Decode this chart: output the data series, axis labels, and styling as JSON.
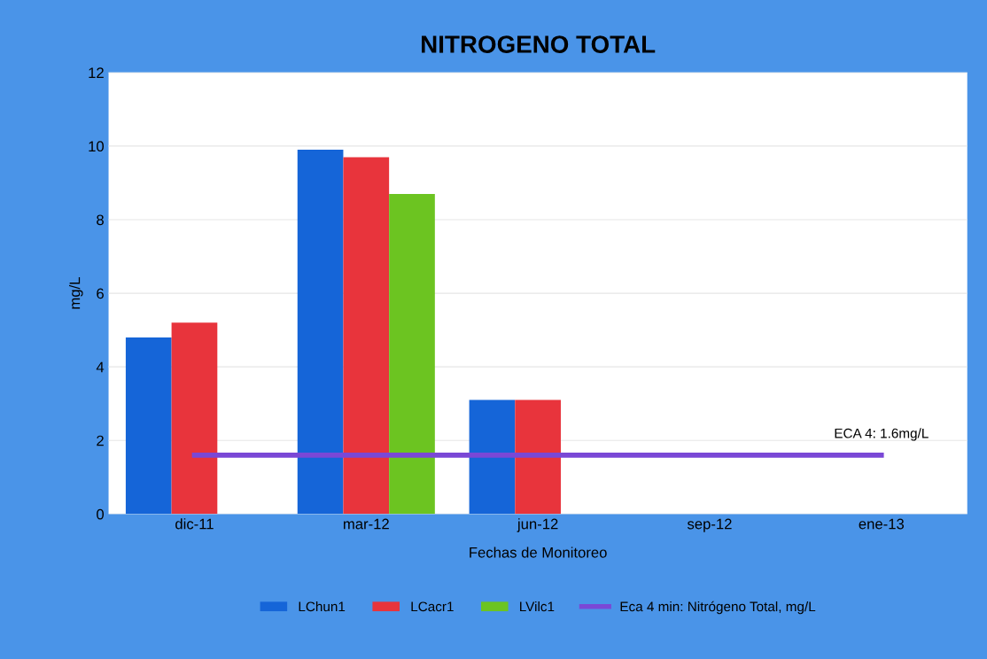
{
  "chart_data": {
    "type": "bar",
    "title": "NITROGENO TOTAL",
    "xlabel": "Fechas de Monitoreo",
    "ylabel": "mg/L",
    "categories": [
      "dic-11",
      "mar-12",
      "jun-12",
      "sep-12",
      "ene-13"
    ],
    "series": [
      {
        "name": "LChun1",
        "color": "#1565d8",
        "values": [
          4.8,
          9.9,
          3.1,
          null,
          null
        ]
      },
      {
        "name": "LCacr1",
        "color": "#e8343c",
        "values": [
          5.2,
          9.7,
          3.1,
          null,
          null
        ]
      },
      {
        "name": "LVilc1",
        "color": "#6cc421",
        "values": [
          null,
          8.7,
          null,
          null,
          null
        ]
      },
      {
        "name": "Eca 4 min: Nitrógeno Total, mg/L",
        "type": "line",
        "color": "#7a48d6",
        "values": [
          1.6,
          1.6,
          1.6,
          1.6,
          1.6
        ]
      }
    ],
    "annotations": [
      {
        "text": "ECA 4: 1.6mg/L",
        "x": "ene-13",
        "y": 1.6
      }
    ],
    "ylim": [
      0,
      12
    ],
    "yticks": [
      0,
      2,
      4,
      6,
      8,
      10,
      12
    ],
    "grid": "y",
    "legend": "bottom"
  }
}
